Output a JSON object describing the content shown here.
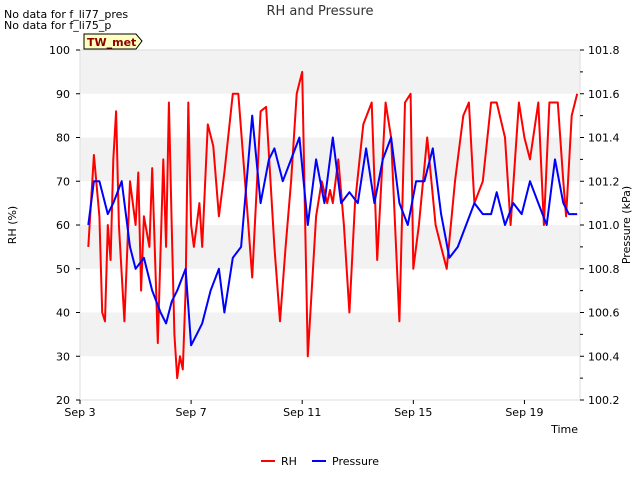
{
  "notes": [
    "No data for f_li77_pres",
    "No data for f_li75_p"
  ],
  "badge": "TW_met",
  "chart_data": {
    "type": "line",
    "title": "RH and Pressure",
    "xlabel": "Time",
    "ylabel": "RH (%)",
    "y2label": "Pressure (kPa)",
    "xticks": [
      "Sep 3",
      "Sep 7",
      "Sep 11",
      "Sep 15",
      "Sep 19"
    ],
    "xlim": [
      3,
      21
    ],
    "ylim": [
      20,
      100
    ],
    "y2lim": [
      100.2,
      101.8
    ],
    "yticks": [
      20,
      30,
      40,
      50,
      60,
      70,
      80,
      90,
      100
    ],
    "y2ticks": [
      "100.2",
      "100.4",
      "100.6",
      "100.8",
      "101.0",
      "101.2",
      "101.4",
      "101.6",
      "101.8"
    ],
    "grid": "horizontal bands",
    "legend_position": "bottom",
    "colors": {
      "RH": "#ff0000",
      "Pressure": "#0000ff",
      "band": "#f2f2f2"
    },
    "series": [
      {
        "name": "RH",
        "axis": "left",
        "x": [
          3.3,
          3.5,
          3.7,
          3.8,
          3.9,
          4.0,
          4.1,
          4.2,
          4.3,
          4.4,
          4.6,
          4.8,
          5.0,
          5.1,
          5.2,
          5.3,
          5.5,
          5.6,
          5.8,
          6.0,
          6.1,
          6.2,
          6.3,
          6.4,
          6.5,
          6.6,
          6.7,
          6.8,
          6.9,
          7.0,
          7.1,
          7.2,
          7.3,
          7.4,
          7.6,
          7.8,
          8.0,
          8.2,
          8.5,
          8.7,
          9.0,
          9.2,
          9.5,
          9.7,
          10.0,
          10.2,
          10.4,
          10.6,
          10.8,
          11.0,
          11.2,
          11.5,
          11.7,
          11.9,
          12.0,
          12.1,
          12.3,
          12.5,
          12.7,
          12.9,
          13.2,
          13.5,
          13.7,
          14.0,
          14.2,
          14.5,
          14.7,
          14.9,
          15.0,
          15.2,
          15.5,
          15.8,
          16.0,
          16.2,
          16.5,
          16.8,
          17.0,
          17.2,
          17.5,
          17.8,
          18.0,
          18.3,
          18.5,
          18.8,
          19.0,
          19.2,
          19.5,
          19.7,
          19.9,
          20.2,
          20.4,
          20.5,
          20.7,
          20.9
        ],
        "y": [
          55,
          76,
          62,
          40,
          38,
          60,
          52,
          75,
          86,
          60,
          38,
          70,
          60,
          72,
          45,
          62,
          55,
          73,
          33,
          75,
          55,
          88,
          60,
          35,
          25,
          30,
          27,
          45,
          88,
          60,
          55,
          60,
          65,
          55,
          83,
          78,
          62,
          72,
          90,
          90,
          65,
          48,
          86,
          87,
          55,
          38,
          55,
          70,
          90,
          95,
          30,
          62,
          70,
          65,
          68,
          65,
          75,
          60,
          40,
          65,
          83,
          88,
          52,
          88,
          80,
          38,
          88,
          90,
          50,
          60,
          80,
          60,
          55,
          50,
          70,
          85,
          88,
          65,
          70,
          88,
          88,
          80,
          60,
          88,
          80,
          75,
          88,
          60,
          88,
          88,
          70,
          62,
          85,
          90
        ]
      },
      {
        "name": "Pressure",
        "axis": "right",
        "x": [
          3.3,
          3.5,
          3.7,
          4.0,
          4.2,
          4.5,
          4.8,
          5.0,
          5.3,
          5.6,
          5.9,
          6.1,
          6.3,
          6.5,
          6.8,
          7.0,
          7.2,
          7.4,
          7.7,
          8.0,
          8.2,
          8.5,
          8.8,
          9.2,
          9.5,
          9.8,
          10.0,
          10.3,
          10.6,
          10.9,
          11.2,
          11.5,
          11.8,
          12.1,
          12.4,
          12.7,
          13.0,
          13.3,
          13.6,
          13.9,
          14.2,
          14.5,
          14.8,
          15.1,
          15.4,
          15.7,
          16.0,
          16.3,
          16.6,
          16.9,
          17.2,
          17.5,
          17.8,
          18.0,
          18.3,
          18.6,
          18.9,
          19.2,
          19.5,
          19.8,
          20.1,
          20.4,
          20.6,
          20.9
        ],
        "y": [
          101.0,
          101.2,
          101.2,
          101.05,
          101.1,
          101.2,
          100.9,
          100.8,
          100.85,
          100.7,
          100.6,
          100.55,
          100.65,
          100.7,
          100.8,
          100.45,
          100.5,
          100.55,
          100.7,
          100.8,
          100.6,
          100.85,
          100.9,
          101.5,
          101.1,
          101.3,
          101.35,
          101.2,
          101.3,
          101.4,
          101.0,
          101.3,
          101.1,
          101.4,
          101.1,
          101.15,
          101.1,
          101.35,
          101.1,
          101.3,
          101.4,
          101.1,
          101.0,
          101.2,
          101.2,
          101.35,
          101.05,
          100.85,
          100.9,
          101.0,
          101.1,
          101.05,
          101.05,
          101.15,
          101.0,
          101.1,
          101.05,
          101.2,
          101.1,
          101.0,
          101.3,
          101.1,
          101.05,
          101.05
        ]
      }
    ]
  }
}
